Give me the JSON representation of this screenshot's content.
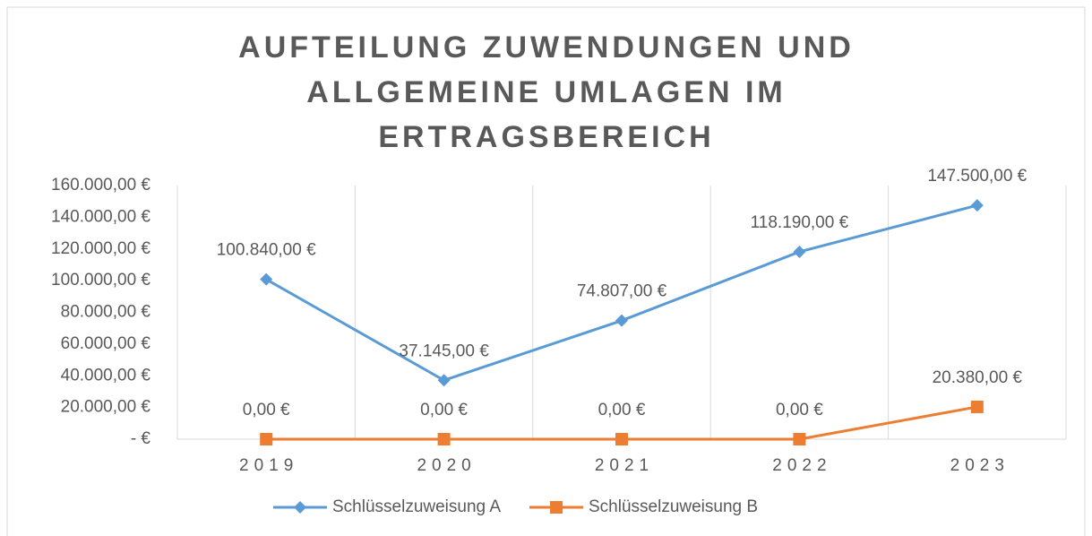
{
  "chart_data": {
    "type": "line",
    "title": "AUFTEILUNG ZUWENDUNGEN UND ALLGEMEINE UMLAGEN IM ERTRAGSBEREICH",
    "categories": [
      "2019",
      "2020",
      "2021",
      "2022",
      "2023"
    ],
    "series": [
      {
        "name": "Schlüsselzuweisung A",
        "color": "#5b9bd5",
        "marker": "diamond",
        "values": [
          100840,
          37145,
          74807,
          118190,
          147500
        ],
        "value_labels": [
          "100.840,00 €",
          "37.145,00 €",
          "74.807,00 €",
          "118.190,00 €",
          "147.500,00 €"
        ]
      },
      {
        "name": "Schlüsselzuweisung B",
        "color": "#ed7d31",
        "marker": "square",
        "values": [
          0,
          0,
          0,
          0,
          20380
        ],
        "value_labels": [
          "0,00 €",
          "0,00 €",
          "0,00 €",
          "0,00 €",
          "20.380,00 €"
        ]
      }
    ],
    "ylim": [
      0,
      160000
    ],
    "yticks": [
      {
        "value": 0,
        "label": "-  €"
      },
      {
        "value": 20000,
        "label": "20.000,00 €"
      },
      {
        "value": 40000,
        "label": "40.000,00 €"
      },
      {
        "value": 60000,
        "label": "60.000,00 €"
      },
      {
        "value": 80000,
        "label": "80.000,00 €"
      },
      {
        "value": 100000,
        "label": "100.000,00 €"
      },
      {
        "value": 120000,
        "label": "120.000,00 €"
      },
      {
        "value": 140000,
        "label": "140.000,00 €"
      },
      {
        "value": 160000,
        "label": "160.000,00 €"
      }
    ],
    "grid": "vertical",
    "legend": "bottom"
  }
}
